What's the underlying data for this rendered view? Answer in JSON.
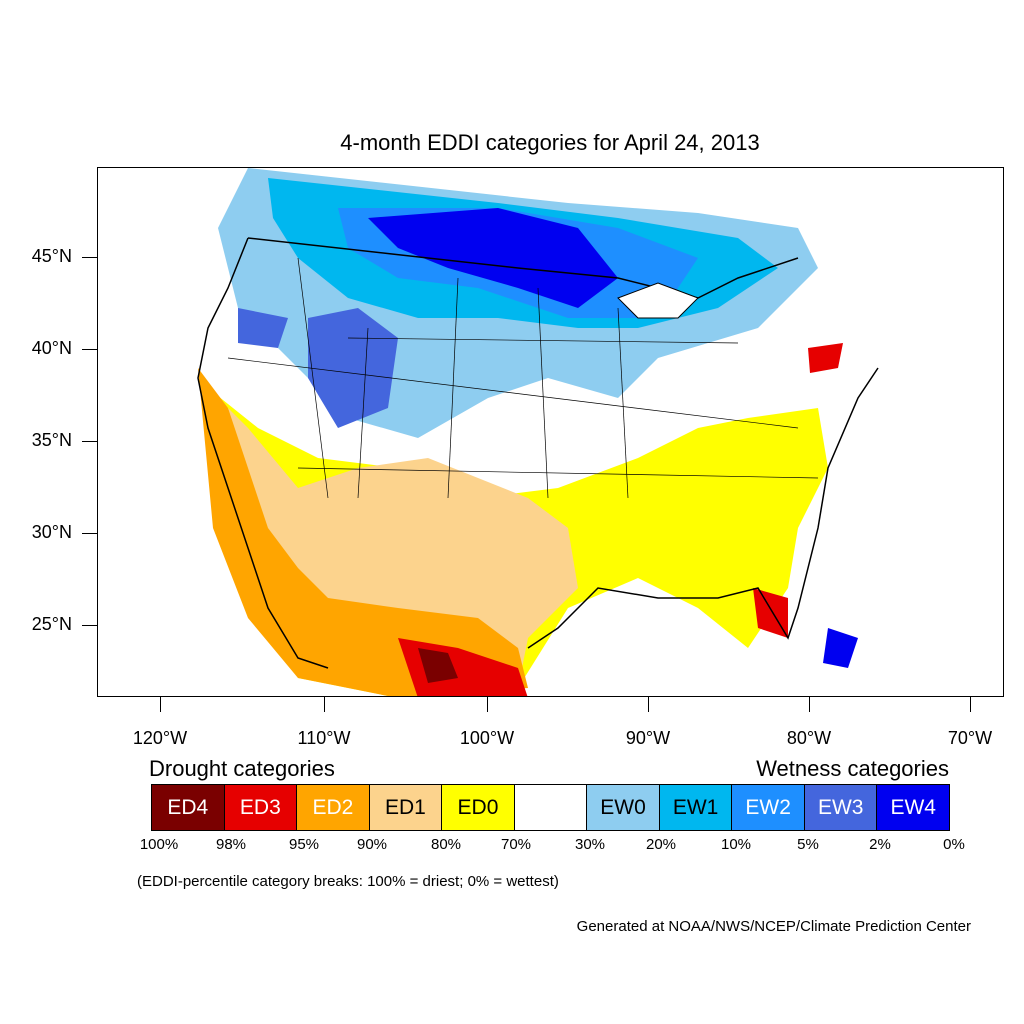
{
  "title": "4-month EDDI categories for April 24, 2013",
  "latitude_labels": [
    "45°N",
    "40°N",
    "35°N",
    "30°N",
    "25°N"
  ],
  "longitude_labels": [
    "120°W",
    "110°W",
    "100°W",
    "90°W",
    "80°W",
    "70°W"
  ],
  "legend": {
    "drought_heading": "Drought categories",
    "wetness_heading": "Wetness categories",
    "categories": [
      {
        "label": "ED4",
        "color": "#7a0000",
        "text_color": "#ffffff"
      },
      {
        "label": "ED3",
        "color": "#e60000",
        "text_color": "#ffffff"
      },
      {
        "label": "ED2",
        "color": "#ffa500",
        "text_color": "#ffffff"
      },
      {
        "label": "ED1",
        "color": "#fcd38d",
        "text_color": "#000000"
      },
      {
        "label": "ED0",
        "color": "#ffff00",
        "text_color": "#000000"
      },
      {
        "label": "",
        "color": "#ffffff",
        "text_color": "#000000"
      },
      {
        "label": "EW0",
        "color": "#8ecdf0",
        "text_color": "#000000"
      },
      {
        "label": "EW1",
        "color": "#00b7ef",
        "text_color": "#000000"
      },
      {
        "label": "EW2",
        "color": "#1e8fff",
        "text_color": "#ffffff"
      },
      {
        "label": "EW3",
        "color": "#4466dd",
        "text_color": "#ffffff"
      },
      {
        "label": "EW4",
        "color": "#0000f0",
        "text_color": "#ffffff"
      }
    ],
    "percentiles": [
      "100%",
      "98%",
      "95%",
      "90%",
      "80%",
      "70%",
      "30%",
      "20%",
      "10%",
      "5%",
      "2%",
      "0%"
    ]
  },
  "note": "(EDDI-percentile category breaks: 100% = driest; 0% = wettest)",
  "credit": "Generated at NOAA/NWS/NCEP/Climate Prediction Center"
}
